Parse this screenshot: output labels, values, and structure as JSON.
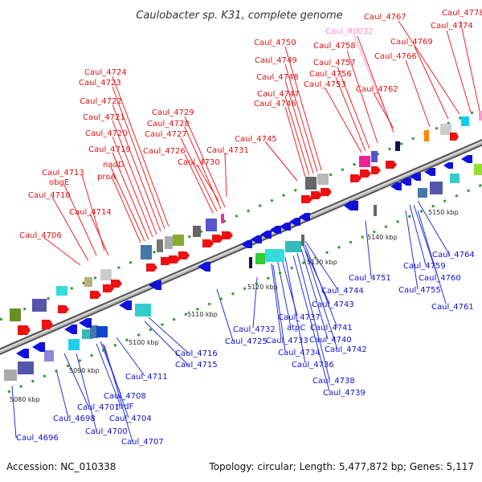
{
  "title": "Caulobacter sp. K31, complete genome",
  "accession": "Accession: NC_010338",
  "summary": "Topology: circular; Length: 5,477,872 bp; Genes: 5,117",
  "colors": {
    "forward": "#ee1111",
    "reverse": "#1111dd",
    "rna": "#ff88cc",
    "backbone": "#888888"
  },
  "ticks": [
    "5080 kbp",
    "5090 kbp",
    "5100 kbp",
    "5110 kbp",
    "5120 kbp",
    "5130 kbp",
    "5140 kbp",
    "5150 kbp"
  ],
  "top_labels": [
    "Caul_4778",
    "Caul_4774",
    "Caul_4767",
    "Caul_4769",
    "Caul_4766",
    "Caul_R0032",
    "Caul_4758",
    "Caul_4757",
    "Caul_4756",
    "Caul_4753",
    "Caul_4762",
    "Caul_4750",
    "Caul_4749",
    "Caul_4748",
    "Caul_4747",
    "Caul_4746",
    "Caul_4745",
    "Caul_4724",
    "Caul_4723",
    "Caul_4722",
    "Caul_4721",
    "Caul_4720",
    "Caul_4719",
    "nadD",
    "proA",
    "Caul_4729",
    "Caul_4728",
    "Caul_4727",
    "Caul_4726",
    "Caul_4730",
    "Caul_4731",
    "Caul_4713",
    "obgE",
    "Caul_4710",
    "Caul_4714",
    "Caul_4706"
  ],
  "bottom_labels": [
    "Caul_4764",
    "Caul_4759",
    "Caul_4760",
    "Caul_4755",
    "Caul_4761",
    "Caul_4751",
    "Caul_4744",
    "Caul_4743",
    "Caul_4737",
    "atpC",
    "Caul_4741",
    "Caul_4732",
    "Caul_4733",
    "Caul_4740",
    "Caul_4742",
    "Caul_4734",
    "Caul_4736",
    "Caul_4738",
    "Caul_4739",
    "Caul_4725",
    "Caul_4716",
    "Caul_4715",
    "Caul_4711",
    "Caul_4708",
    "nrdF",
    "Caul_4701",
    "Caul_4704",
    "Caul_4698",
    "Caul_4700",
    "Caul_4707",
    "Caul_4696"
  ]
}
